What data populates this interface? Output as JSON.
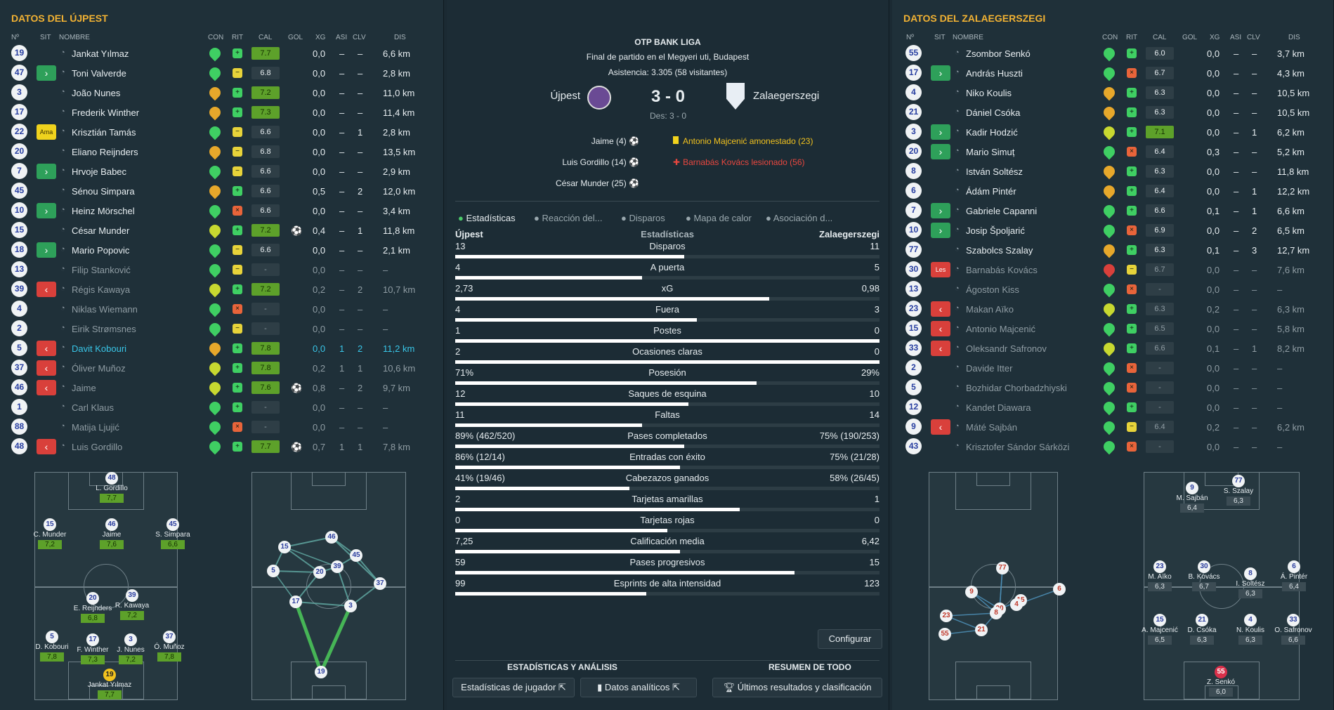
{
  "left": {
    "title": "DATOS DEL ÚJPEST",
    "headers": [
      "Nº",
      "SIT",
      "NOMBRE",
      "CON",
      "RIT",
      "CAL",
      "GOL",
      "XG",
      "ASI",
      "CLV",
      "DIS"
    ],
    "players": [
      {
        "num": "19",
        "sit": "",
        "name": "Jankat Yılmaz",
        "con": "g",
        "rit": "g",
        "cal": "7.7",
        "gol": "",
        "xg": "0,0",
        "asi": "–",
        "clv": "–",
        "dis": "6,6 km",
        "state": ""
      },
      {
        "num": "47",
        "sit": "in",
        "name": "Toni Valverde",
        "con": "g",
        "rit": "y",
        "cal": "6.8",
        "gol": "",
        "xg": "0,0",
        "asi": "–",
        "clv": "–",
        "dis": "2,8 km",
        "state": ""
      },
      {
        "num": "3",
        "sit": "",
        "name": "João Nunes",
        "con": "o",
        "rit": "g",
        "cal": "7.2",
        "gol": "",
        "xg": "0,0",
        "asi": "–",
        "clv": "–",
        "dis": "11,0 km",
        "state": ""
      },
      {
        "num": "17",
        "sit": "",
        "name": "Frederik Winther",
        "con": "o",
        "rit": "g",
        "cal": "7.3",
        "gol": "",
        "xg": "0,0",
        "asi": "–",
        "clv": "–",
        "dis": "11,4 km",
        "state": ""
      },
      {
        "num": "22",
        "sit": "ama",
        "name": "Krisztián Tamás",
        "con": "g",
        "rit": "y",
        "cal": "6.6",
        "gol": "",
        "xg": "0,0",
        "asi": "–",
        "clv": "1",
        "dis": "2,8 km",
        "state": ""
      },
      {
        "num": "20",
        "sit": "",
        "name": "Eliano Reijnders",
        "con": "o",
        "rit": "y",
        "cal": "6.8",
        "gol": "",
        "xg": "0,0",
        "asi": "–",
        "clv": "–",
        "dis": "13,5 km",
        "state": ""
      },
      {
        "num": "7",
        "sit": "in",
        "name": "Hrvoje Babec",
        "con": "g",
        "rit": "y",
        "cal": "6.6",
        "gol": "",
        "xg": "0,0",
        "asi": "–",
        "clv": "–",
        "dis": "2,9 km",
        "state": ""
      },
      {
        "num": "45",
        "sit": "",
        "name": "Sénou Simpara",
        "con": "o",
        "rit": "g",
        "cal": "6.6",
        "gol": "",
        "xg": "0,5",
        "asi": "–",
        "clv": "2",
        "dis": "12,0 km",
        "state": ""
      },
      {
        "num": "10",
        "sit": "in",
        "name": "Heinz Mörschel",
        "con": "g",
        "rit": "r",
        "cal": "6.6",
        "gol": "",
        "xg": "0,0",
        "asi": "–",
        "clv": "–",
        "dis": "3,4 km",
        "state": ""
      },
      {
        "num": "15",
        "sit": "",
        "name": "César Munder",
        "con": "y",
        "rit": "g",
        "cal": "7.2",
        "gol": "⚽",
        "xg": "0,4",
        "asi": "–",
        "clv": "1",
        "dis": "11,8 km",
        "state": ""
      },
      {
        "num": "18",
        "sit": "in",
        "name": "Mario Popovic",
        "con": "g",
        "rit": "y",
        "cal": "6.6",
        "gol": "",
        "xg": "0,0",
        "asi": "–",
        "clv": "–",
        "dis": "2,1 km",
        "state": ""
      },
      {
        "num": "13",
        "sit": "",
        "name": "Filip Stanković",
        "con": "g",
        "rit": "y",
        "cal": "-",
        "gol": "",
        "xg": "0,0",
        "asi": "–",
        "clv": "–",
        "dis": "–",
        "state": "sub"
      },
      {
        "num": "39",
        "sit": "out",
        "name": "Régis Kawaya",
        "con": "y",
        "rit": "g",
        "cal": "7.2",
        "gol": "",
        "xg": "0,2",
        "asi": "–",
        "clv": "2",
        "dis": "10,7 km",
        "state": "sub"
      },
      {
        "num": "4",
        "sit": "",
        "name": "Niklas Wiemann",
        "con": "g",
        "rit": "r",
        "cal": "-",
        "gol": "",
        "xg": "0,0",
        "asi": "–",
        "clv": "–",
        "dis": "–",
        "state": "sub"
      },
      {
        "num": "2",
        "sit": "",
        "name": "Eirik Strømsnes",
        "con": "g",
        "rit": "y",
        "cal": "-",
        "gol": "",
        "xg": "0,0",
        "asi": "–",
        "clv": "–",
        "dis": "–",
        "state": "sub"
      },
      {
        "num": "5",
        "sit": "out",
        "name": "Davit Kobouri",
        "con": "o",
        "rit": "g",
        "cal": "7.8",
        "gol": "",
        "xg": "0,0",
        "asi": "1",
        "clv": "2",
        "dis": "11,2 km",
        "state": "hl"
      },
      {
        "num": "37",
        "sit": "out",
        "name": "Óliver Muñoz",
        "con": "y",
        "rit": "g",
        "cal": "7.8",
        "gol": "",
        "xg": "0,2",
        "asi": "1",
        "clv": "1",
        "dis": "10,6 km",
        "state": "sub"
      },
      {
        "num": "46",
        "sit": "out",
        "name": "Jaime",
        "con": "y",
        "rit": "g",
        "cal": "7.6",
        "gol": "⚽",
        "xg": "0,8",
        "asi": "–",
        "clv": "2",
        "dis": "9,7 km",
        "state": "sub"
      },
      {
        "num": "1",
        "sit": "",
        "name": "Carl Klaus",
        "con": "g",
        "rit": "g",
        "cal": "-",
        "gol": "",
        "xg": "0,0",
        "asi": "–",
        "clv": "–",
        "dis": "–",
        "state": "sub"
      },
      {
        "num": "88",
        "sit": "",
        "name": "Matija Ljujić",
        "con": "g",
        "rit": "r",
        "cal": "-",
        "gol": "",
        "xg": "0,0",
        "asi": "–",
        "clv": "–",
        "dis": "–",
        "state": "sub"
      },
      {
        "num": "48",
        "sit": "out",
        "name": "Luis Gordillo",
        "con": "g",
        "rit": "g",
        "cal": "7.7",
        "gol": "⚽",
        "xg": "0,7",
        "asi": "1",
        "clv": "1",
        "dis": "7,8 km",
        "state": "sub"
      }
    ],
    "formation": [
      {
        "num": "48",
        "name": "L. Gordillo",
        "rating": "7,7"
      },
      {
        "num": "15",
        "name": "C. Munder",
        "rating": "7,2"
      },
      {
        "num": "46",
        "name": "Jaime",
        "rating": "7,6"
      },
      {
        "num": "45",
        "name": "S. Simpara",
        "rating": "6,6"
      },
      {
        "num": "20",
        "name": "E. Reijnders",
        "rating": "6,8"
      },
      {
        "num": "39",
        "name": "R. Kawaya",
        "rating": "7,2"
      },
      {
        "num": "5",
        "name": "D. Kobouri",
        "rating": "7,8"
      },
      {
        "num": "17",
        "name": "F. Winther",
        "rating": "7,3"
      },
      {
        "num": "3",
        "name": "J. Nunes",
        "rating": "7,2"
      },
      {
        "num": "37",
        "name": "Ó. Muñoz",
        "rating": "7,8"
      },
      {
        "num": "19",
        "name": "Jankat Yılmaz",
        "rating": "7,7"
      }
    ],
    "pass_nodes": [
      "15",
      "46",
      "45",
      "20",
      "39",
      "5",
      "37",
      "17",
      "3",
      "19"
    ]
  },
  "center": {
    "league": "OTP BANK LIGA",
    "subtitle": "Final de partido en el Megyeri uti, Budapest",
    "attendance": "Asistencia: 3.305 (58 visitantes)",
    "home": "Újpest",
    "away": "Zalaegerszegi",
    "score": "3 - 0",
    "halftime": "Des: 3 - 0",
    "home_events": [
      "Jaime (4)",
      "Luis Gordillo (14)",
      "César Munder (25)"
    ],
    "away_events": [
      {
        "icon": "yellow",
        "text": "Antonio Majcenić amonestado (23)"
      },
      {
        "icon": "injury",
        "text": "Barnabás Kovács lesionado (56)"
      }
    ],
    "tabs": [
      "Estadísticas",
      "Reacción del...",
      "Disparos",
      "Mapa de calor",
      "Asociación d..."
    ],
    "stats_header": {
      "home": "Újpest",
      "mid": "Estadísticas",
      "away": "Zalaegerszegi"
    },
    "stats": [
      {
        "label": "Disparos",
        "home": "13",
        "away": "11",
        "pct": 0.54
      },
      {
        "label": "A puerta",
        "home": "4",
        "away": "5",
        "pct": 0.44
      },
      {
        "label": "xG",
        "home": "2,73",
        "away": "0,98",
        "pct": 0.74
      },
      {
        "label": "Fuera",
        "home": "4",
        "away": "3",
        "pct": 0.57
      },
      {
        "label": "Postes",
        "home": "1",
        "away": "0",
        "pct": 1.0
      },
      {
        "label": "Ocasiones claras",
        "home": "2",
        "away": "0",
        "pct": 1.0
      },
      {
        "label": "Posesión",
        "home": "71%",
        "away": "29%",
        "pct": 0.71
      },
      {
        "label": "Saques de esquina",
        "home": "12",
        "away": "10",
        "pct": 0.55
      },
      {
        "label": "Faltas",
        "home": "11",
        "away": "14",
        "pct": 0.44
      },
      {
        "label": "Pases completados",
        "home": "89% (462/520)",
        "away": "75% (190/253)",
        "pct": 0.54
      },
      {
        "label": "Entradas con éxito",
        "home": "86% (12/14)",
        "away": "75% (21/28)",
        "pct": 0.53
      },
      {
        "label": "Cabezazos ganados",
        "home": "41% (19/46)",
        "away": "58% (26/45)",
        "pct": 0.41
      },
      {
        "label": "Tarjetas amarillas",
        "home": "2",
        "away": "1",
        "pct": 0.67
      },
      {
        "label": "Tarjetas rojas",
        "home": "0",
        "away": "0",
        "pct": 0.5
      },
      {
        "label": "Calificación media",
        "home": "7,25",
        "away": "6,42",
        "pct": 0.53
      },
      {
        "label": "Pases progresivos",
        "home": "59",
        "away": "15",
        "pct": 0.8
      },
      {
        "label": "Esprints de alta intensidad",
        "home": "99",
        "away": "123",
        "pct": 0.45
      }
    ],
    "configure": "Configurar",
    "section_left": "ESTADÍSTICAS Y ANÁLISIS",
    "section_right": "RESUMEN DE TODO",
    "btn_players": "Estadísticas de jugador",
    "btn_analytics": "Datos analíticos",
    "btn_results": "Últimos resultados y clasificación"
  },
  "right": {
    "title": "DATOS DEL ZALAEGERSZEGI",
    "headers": [
      "Nº",
      "SIT",
      "NOMBRE",
      "CON",
      "RIT",
      "CAL",
      "GOL",
      "XG",
      "ASI",
      "CLV",
      "DIS"
    ],
    "players": [
      {
        "num": "55",
        "sit": "",
        "name": "Zsombor Senkó",
        "con": "g",
        "rit": "g",
        "cal": "6.0",
        "gol": "",
        "xg": "0,0",
        "asi": "–",
        "clv": "–",
        "dis": "3,7 km",
        "state": ""
      },
      {
        "num": "17",
        "sit": "in",
        "name": "András Huszti",
        "con": "g",
        "rit": "r",
        "cal": "6.7",
        "gol": "",
        "xg": "0,0",
        "asi": "–",
        "clv": "–",
        "dis": "4,3 km",
        "state": ""
      },
      {
        "num": "4",
        "sit": "",
        "name": "Niko Koulis",
        "con": "o",
        "rit": "g",
        "cal": "6.3",
        "gol": "",
        "xg": "0,0",
        "asi": "–",
        "clv": "–",
        "dis": "10,5 km",
        "state": ""
      },
      {
        "num": "21",
        "sit": "",
        "name": "Dániel Csóka",
        "con": "o",
        "rit": "g",
        "cal": "6.3",
        "gol": "",
        "xg": "0,0",
        "asi": "–",
        "clv": "–",
        "dis": "10,5 km",
        "state": ""
      },
      {
        "num": "3",
        "sit": "in",
        "name": "Kadir Hodzić",
        "con": "y",
        "rit": "g",
        "cal": "7.1",
        "gol": "",
        "xg": "0,0",
        "asi": "–",
        "clv": "1",
        "dis": "6,2 km",
        "state": ""
      },
      {
        "num": "20",
        "sit": "in",
        "name": "Mario Simuț",
        "con": "g",
        "rit": "r",
        "cal": "6.4",
        "gol": "",
        "xg": "0,3",
        "asi": "–",
        "clv": "–",
        "dis": "5,2 km",
        "state": ""
      },
      {
        "num": "8",
        "sit": "",
        "name": "István Soltész",
        "con": "o",
        "rit": "g",
        "cal": "6.3",
        "gol": "",
        "xg": "0,0",
        "asi": "–",
        "clv": "–",
        "dis": "11,8 km",
        "state": ""
      },
      {
        "num": "6",
        "sit": "",
        "name": "Ádám Pintér",
        "con": "o",
        "rit": "g",
        "cal": "6.4",
        "gol": "",
        "xg": "0,0",
        "asi": "–",
        "clv": "1",
        "dis": "12,2 km",
        "state": ""
      },
      {
        "num": "7",
        "sit": "in",
        "name": "Gabriele Capanni",
        "con": "g",
        "rit": "g",
        "cal": "6.6",
        "gol": "",
        "xg": "0,1",
        "asi": "–",
        "clv": "1",
        "dis": "6,6 km",
        "state": ""
      },
      {
        "num": "10",
        "sit": "in",
        "name": "Josip Špoljarić",
        "con": "g",
        "rit": "r",
        "cal": "6.9",
        "gol": "",
        "xg": "0,0",
        "asi": "–",
        "clv": "2",
        "dis": "6,5 km",
        "state": ""
      },
      {
        "num": "77",
        "sit": "",
        "name": "Szabolcs Szalay",
        "con": "o",
        "rit": "g",
        "cal": "6.3",
        "gol": "",
        "xg": "0,1",
        "asi": "–",
        "clv": "3",
        "dis": "12,7 km",
        "state": ""
      },
      {
        "num": "30",
        "sit": "les",
        "name": "Barnabás Kovács",
        "con": "r",
        "rit": "y",
        "cal": "6.7",
        "gol": "",
        "xg": "0,0",
        "asi": "–",
        "clv": "–",
        "dis": "7,6 km",
        "state": "sub"
      },
      {
        "num": "13",
        "sit": "",
        "name": "Ágoston Kiss",
        "con": "g",
        "rit": "r",
        "cal": "-",
        "gol": "",
        "xg": "0,0",
        "asi": "–",
        "clv": "–",
        "dis": "–",
        "state": "sub"
      },
      {
        "num": "23",
        "sit": "out",
        "name": "Makan Aïko",
        "con": "y",
        "rit": "g",
        "cal": "6.3",
        "gol": "",
        "xg": "0,2",
        "asi": "–",
        "clv": "–",
        "dis": "6,3 km",
        "state": "sub"
      },
      {
        "num": "15",
        "sit": "out",
        "name": "Antonio Majcenić",
        "con": "g",
        "rit": "g",
        "cal": "6.5",
        "gol": "",
        "xg": "0,0",
        "asi": "–",
        "clv": "–",
        "dis": "5,8 km",
        "state": "sub"
      },
      {
        "num": "33",
        "sit": "out",
        "name": "Oleksandr Safronov",
        "con": "y",
        "rit": "g",
        "cal": "6.6",
        "gol": "",
        "xg": "0,1",
        "asi": "–",
        "clv": "1",
        "dis": "8,2 km",
        "state": "sub"
      },
      {
        "num": "2",
        "sit": "",
        "name": "Davide Itter",
        "con": "g",
        "rit": "r",
        "cal": "-",
        "gol": "",
        "xg": "0,0",
        "asi": "–",
        "clv": "–",
        "dis": "–",
        "state": "sub"
      },
      {
        "num": "5",
        "sit": "",
        "name": "Bozhidar Chorbadzhiyski",
        "con": "g",
        "rit": "r",
        "cal": "-",
        "gol": "",
        "xg": "0,0",
        "asi": "–",
        "clv": "–",
        "dis": "–",
        "state": "sub"
      },
      {
        "num": "12",
        "sit": "",
        "name": "Kandet Diawara",
        "con": "g",
        "rit": "g",
        "cal": "-",
        "gol": "",
        "xg": "0,0",
        "asi": "–",
        "clv": "–",
        "dis": "–",
        "state": "sub"
      },
      {
        "num": "9",
        "sit": "out",
        "name": "Máté Sajbán",
        "con": "g",
        "rit": "y",
        "cal": "6.4",
        "gol": "",
        "xg": "0,2",
        "asi": "–",
        "clv": "–",
        "dis": "6,2 km",
        "state": "sub"
      },
      {
        "num": "43",
        "sit": "",
        "name": "Krisztofer Sándor Sárközi",
        "con": "g",
        "rit": "r",
        "cal": "-",
        "gol": "",
        "xg": "0,0",
        "asi": "–",
        "clv": "–",
        "dis": "–",
        "state": "sub"
      }
    ],
    "formation": [
      {
        "num": "9",
        "name": "M. Sajbán",
        "rating": "6,4"
      },
      {
        "num": "77",
        "name": "S. Szalay",
        "rating": "6,3"
      },
      {
        "num": "23",
        "name": "M. Aïko",
        "rating": "6,3"
      },
      {
        "num": "30",
        "name": "B. Kovács",
        "rating": "6,7"
      },
      {
        "num": "8",
        "name": "I. Soltész",
        "rating": "6,3"
      },
      {
        "num": "6",
        "name": "Á. Pintér",
        "rating": "6,4"
      },
      {
        "num": "15",
        "name": "A. Majcenić",
        "rating": "6,5"
      },
      {
        "num": "21",
        "name": "D. Csóka",
        "rating": "6,3"
      },
      {
        "num": "4",
        "name": "N. Koulis",
        "rating": "6,3"
      },
      {
        "num": "33",
        "name": "O. Safronov",
        "rating": "6,6"
      },
      {
        "num": "55",
        "name": "Z. Senkó",
        "rating": "6,0"
      }
    ],
    "pass_nodes": [
      "77",
      "9",
      "6",
      "30",
      "15",
      "23",
      "8",
      "21",
      "4",
      "55"
    ]
  },
  "colors": {
    "accent": "#f2b233",
    "good": "#5da12a",
    "panel": "#1f3039",
    "in": "#2ea05a",
    "out": "#d9403b",
    "bar": "#ffffff"
  }
}
